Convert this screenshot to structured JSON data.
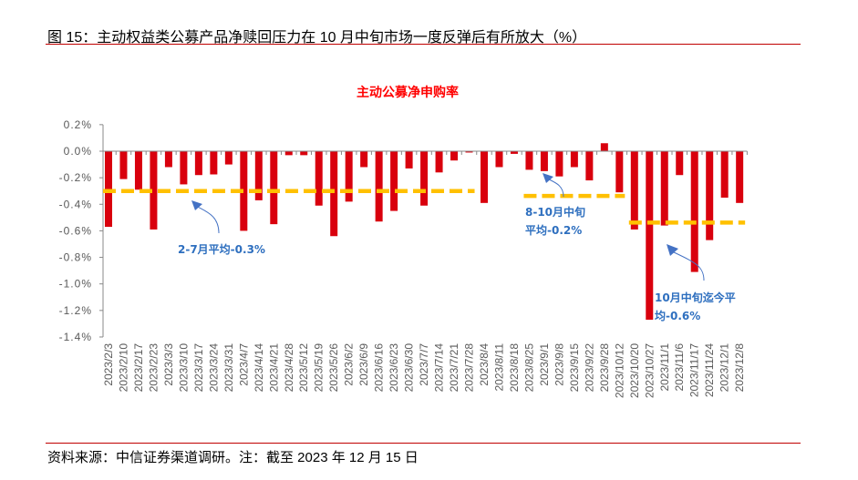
{
  "header": {
    "title": "图 15：主动权益类公募产品净赎回压力在 10 月中旬市场一度反弹后有所放大（%）"
  },
  "footer": {
    "source": "资料来源：中信证券渠道调研。注：截至 2023 年 12 月 15 日"
  },
  "colors": {
    "bar": "#d9000d",
    "avg_line": "#ffc000",
    "annotation": "#2e6fbf",
    "chart_title": "#ff0000",
    "rule": "#c00000"
  },
  "chart_data": {
    "type": "bar",
    "title": "主动公募净申购率",
    "xlabel": "",
    "ylabel": "",
    "ylim": [
      -1.4,
      0.2
    ],
    "yticks": [
      0.2,
      0.0,
      -0.2,
      -0.4,
      -0.6,
      -0.8,
      -1.0,
      -1.2,
      -1.4
    ],
    "ytick_labels": [
      "0.2%",
      "0.0%",
      "-0.2%",
      "-0.4%",
      "-0.6%",
      "-0.8%",
      "-1.0%",
      "-1.2%",
      "-1.4%"
    ],
    "grid": false,
    "categories": [
      "2023/2/3",
      "2023/2/10",
      "2023/2/17",
      "2023/2/23",
      "2023/3/3",
      "2023/3/10",
      "2023/3/17",
      "2023/3/24",
      "2023/3/31",
      "2023/4/7",
      "2023/4/14",
      "2023/4/21",
      "2023/4/28",
      "2023/5/12",
      "2023/5/19",
      "2023/5/26",
      "2023/6/2",
      "2023/6/9",
      "2023/6/16",
      "2023/6/23",
      "2023/6/30",
      "2023/7/7",
      "2023/7/14",
      "2023/7/21",
      "2023/7/28",
      "2023/8/4",
      "2023/8/11",
      "2023/8/18",
      "2023/8/25",
      "2023/9/1",
      "2023/9/8",
      "2023/9/15",
      "2023/9/22",
      "2023/9/28",
      "2023/10/12",
      "2023/10/20",
      "2023/10/27",
      "2023/11/1",
      "2023/11/6",
      "2023/11/17",
      "2023/11/24",
      "2023/12/1",
      "2023/12/8"
    ],
    "values": [
      -0.57,
      -0.21,
      -0.29,
      -0.59,
      -0.12,
      -0.25,
      -0.18,
      -0.175,
      -0.1,
      -0.6,
      -0.37,
      -0.55,
      -0.03,
      -0.03,
      -0.41,
      -0.64,
      -0.38,
      -0.12,
      -0.53,
      -0.45,
      -0.13,
      -0.41,
      -0.16,
      -0.07,
      -0.01,
      -0.39,
      -0.12,
      -0.02,
      -0.14,
      -0.15,
      -0.19,
      -0.12,
      -0.22,
      0.06,
      -0.31,
      -0.59,
      -1.27,
      -0.56,
      -0.18,
      -0.91,
      -0.67,
      -0.35,
      -0.39
    ],
    "averages": [
      {
        "label": "2-7月平均-0.3%",
        "value": -0.3,
        "from": "2023/2/3",
        "to": "2023/7/28"
      },
      {
        "label": "8-10月中旬平均-0.2%",
        "line1": "8-10月中旬",
        "line2": "平均-0.2%",
        "value": -0.2,
        "from": "2023/8/25",
        "to": "2023/10/12"
      },
      {
        "label": "10月中旬迄今平均-0.6%",
        "line1": "10月中旬迄今平",
        "line2": "均-0.6%",
        "value": -0.6,
        "from": "2023/10/20",
        "to": "2023/12/8"
      }
    ]
  }
}
